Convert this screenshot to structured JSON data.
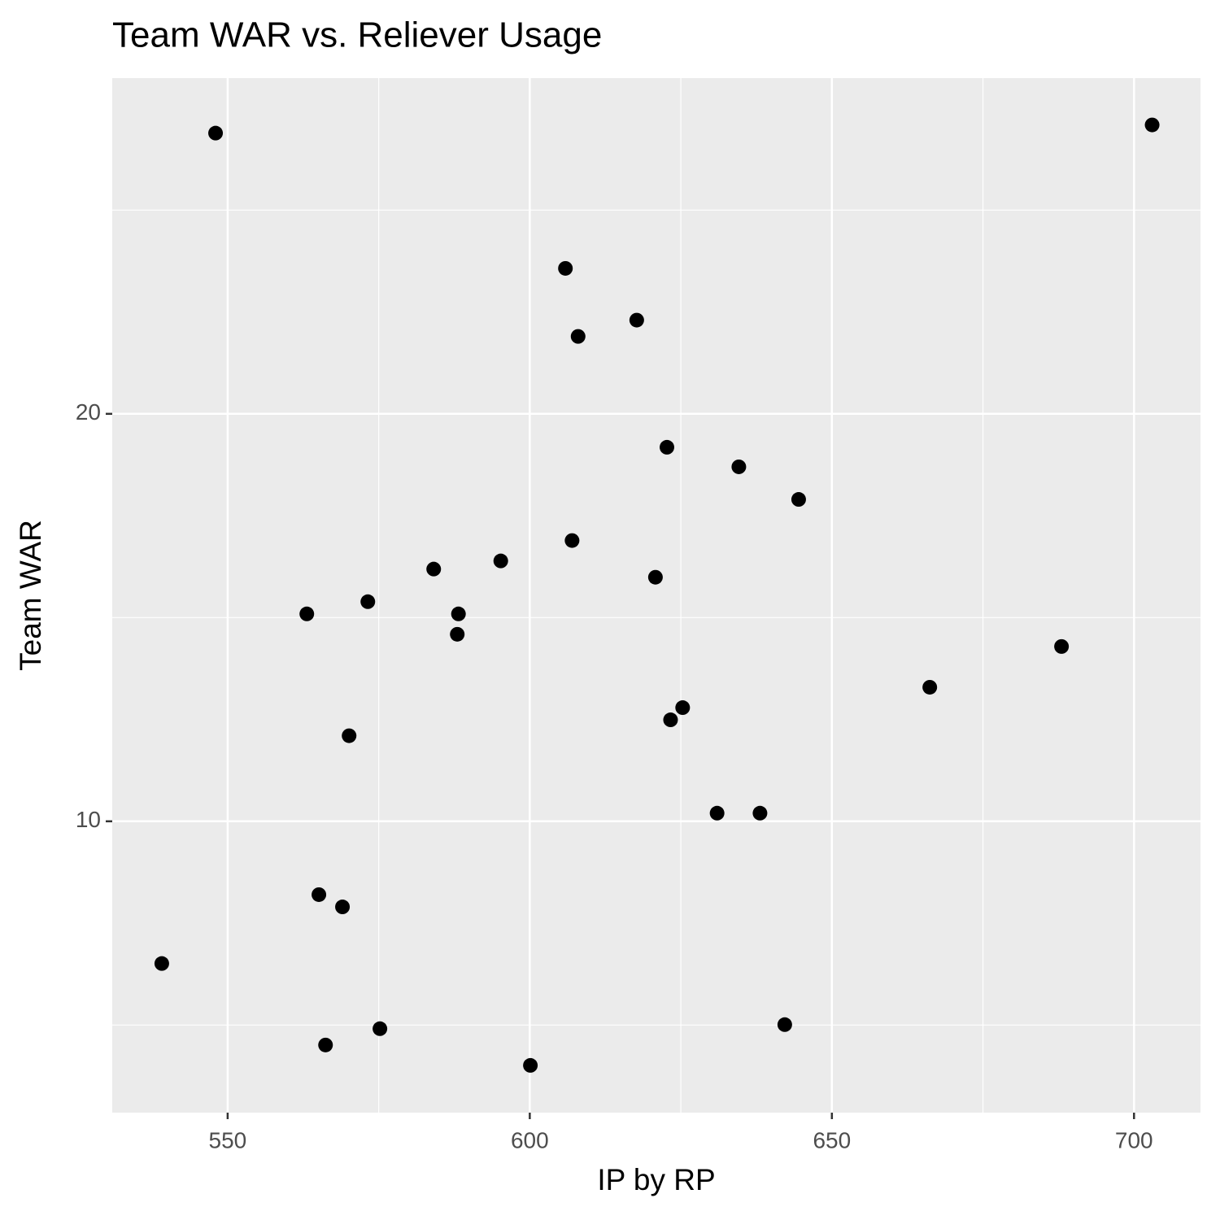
{
  "chart_data": {
    "type": "scatter",
    "title": "Team WAR vs. Reliever Usage",
    "x_label": "IP by RP",
    "y_label": "Team WAR",
    "x": [
      548.0,
      703.0,
      605.9,
      617.7,
      608.0,
      622.7,
      634.6,
      644.5,
      607.0,
      595.2,
      584.1,
      620.8,
      573.2,
      563.1,
      588.2,
      588.0,
      688.0,
      666.2,
      625.3,
      623.3,
      570.1,
      631.0,
      638.1,
      565.1,
      569.0,
      539.1,
      642.2,
      575.2,
      566.2,
      600.1
    ],
    "values": [
      26.89,
      27.09,
      23.57,
      22.3,
      21.9,
      19.18,
      18.7,
      17.9,
      16.89,
      16.39,
      16.19,
      15.99,
      15.39,
      15.09,
      15.09,
      14.59,
      14.29,
      13.29,
      12.79,
      12.49,
      12.1,
      10.2,
      10.2,
      8.2,
      7.9,
      6.51,
      5.01,
      4.91,
      4.51,
      4.01
    ],
    "color": "#000000",
    "xlim": [
      530.9,
      711.0
    ],
    "xticks": [
      550,
      600,
      650,
      700
    ],
    "ylim": [
      2.85,
      28.24
    ],
    "yticks": [
      10,
      20
    ],
    "grid": true
  }
}
